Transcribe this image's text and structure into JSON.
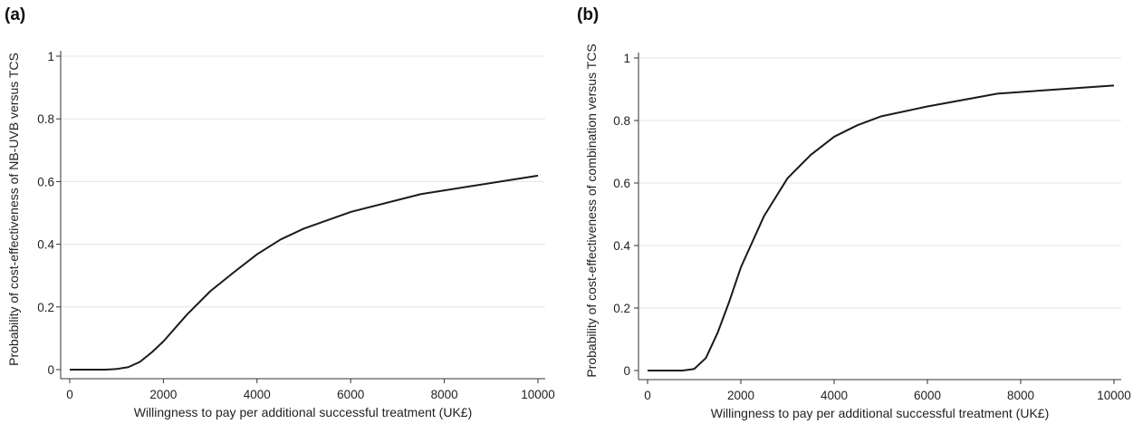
{
  "chart_data": [
    {
      "type": "line",
      "panel_label": "(a)",
      "xlabel": "Willingness to pay per additional successful treatment (UK£)",
      "ylabel": "Probability of cost-effectiveness of NB-UVB versus TCS",
      "xlim": [
        0,
        10000
      ],
      "ylim": [
        0,
        1
      ],
      "xticks": [
        "0",
        "2000",
        "4000",
        "6000",
        "8000",
        "10000"
      ],
      "yticks": [
        "0",
        "0.2",
        "0.4",
        "0.6",
        "0.8",
        "1"
      ],
      "grid": "horizontal",
      "series": [
        {
          "x": [
            0,
            250,
            500,
            750,
            1000,
            1250,
            1500,
            1750,
            2000,
            2500,
            3000,
            3500,
            4000,
            4500,
            5000,
            6000,
            7500,
            10000
          ],
          "y": [
            0,
            0,
            0,
            0,
            0.002,
            0.008,
            0.025,
            0.055,
            0.09,
            0.175,
            0.25,
            0.31,
            0.368,
            0.415,
            0.45,
            0.503,
            0.56,
            0.619
          ]
        }
      ]
    },
    {
      "type": "line",
      "panel_label": "(b)",
      "xlabel": "Willingness to pay per additional successful treatment (UK£)",
      "ylabel": "Probability of cost-effectiveness of combination versus TCS",
      "xlim": [
        0,
        10000
      ],
      "ylim": [
        0,
        1
      ],
      "xticks": [
        "0",
        "2000",
        "4000",
        "6000",
        "8000",
        "10000"
      ],
      "yticks": [
        "0",
        "0.2",
        "0.4",
        "0.6",
        "0.8",
        "1"
      ],
      "grid": "horizontal",
      "series": [
        {
          "x": [
            0,
            250,
            500,
            750,
            1000,
            1250,
            1500,
            1750,
            2000,
            2500,
            3000,
            3500,
            4000,
            4500,
            5000,
            6000,
            7500,
            10000
          ],
          "y": [
            0,
            0,
            0,
            0,
            0.005,
            0.04,
            0.12,
            0.22,
            0.33,
            0.495,
            0.615,
            0.69,
            0.748,
            0.785,
            0.813,
            0.845,
            0.886,
            0.912
          ]
        }
      ]
    }
  ]
}
